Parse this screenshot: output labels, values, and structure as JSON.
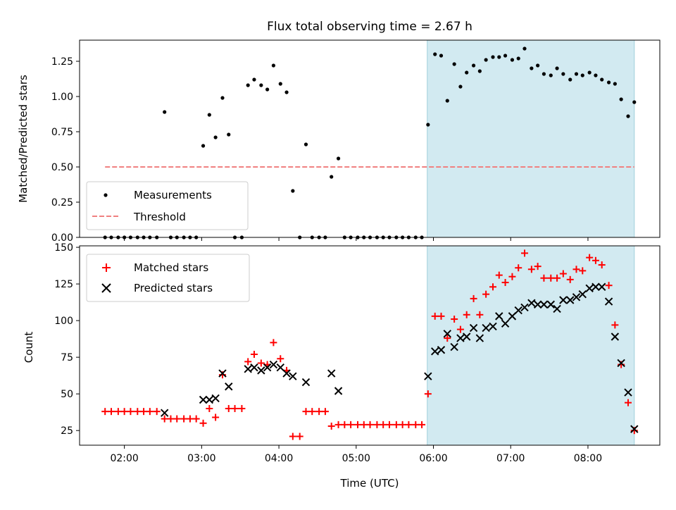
{
  "title": "Flux total observing time = 2.67 h",
  "colors": {
    "highlight": "#add8e6",
    "measurement": "#000000",
    "threshold": "#f08080",
    "matched": "#ff0000",
    "predicted": "#000000"
  },
  "chart_data": [
    {
      "type": "scatter",
      "title": "Flux total observing time = 2.67 h",
      "xlabel": "",
      "ylabel": "Matched/Predicted stars",
      "x_unit": "hours (UTC)",
      "xlim": [
        1.42,
        8.93
      ],
      "ylim": [
        0,
        1.4
      ],
      "yticks": [
        "0.00",
        "0.25",
        "0.50",
        "0.75",
        "1.00",
        "1.25"
      ],
      "ytick_values": [
        0,
        0.25,
        0.5,
        0.75,
        1.0,
        1.25
      ],
      "highlight_span": [
        5.92,
        8.6
      ],
      "legend": [
        "Measurements",
        "Threshold"
      ],
      "legend_position": "lower-left",
      "threshold": {
        "y": 0.5,
        "x": [
          1.75,
          8.6
        ]
      },
      "series": [
        {
          "name": "Measurements",
          "marker": "dot",
          "points": [
            [
              1.75,
              0
            ],
            [
              1.83,
              0
            ],
            [
              1.92,
              0
            ],
            [
              2.0,
              0
            ],
            [
              2.08,
              0
            ],
            [
              2.17,
              0
            ],
            [
              2.25,
              0
            ],
            [
              2.33,
              0
            ],
            [
              2.42,
              0
            ],
            [
              2.52,
              0.89
            ],
            [
              2.6,
              0
            ],
            [
              2.68,
              0
            ],
            [
              2.77,
              0
            ],
            [
              2.85,
              0
            ],
            [
              2.93,
              0
            ],
            [
              3.02,
              0.65
            ],
            [
              3.1,
              0.87
            ],
            [
              3.18,
              0.71
            ],
            [
              3.27,
              0.99
            ],
            [
              3.35,
              0.73
            ],
            [
              3.43,
              0
            ],
            [
              3.52,
              0
            ],
            [
              3.6,
              1.08
            ],
            [
              3.68,
              1.12
            ],
            [
              3.77,
              1.08
            ],
            [
              3.85,
              1.05
            ],
            [
              3.93,
              1.22
            ],
            [
              4.02,
              1.09
            ],
            [
              4.1,
              1.03
            ],
            [
              4.18,
              0.33
            ],
            [
              4.27,
              0
            ],
            [
              4.35,
              0.66
            ],
            [
              4.43,
              0
            ],
            [
              4.52,
              0
            ],
            [
              4.6,
              0
            ],
            [
              4.68,
              0.43
            ],
            [
              4.77,
              0.56
            ],
            [
              4.85,
              0
            ],
            [
              4.93,
              0
            ],
            [
              5.02,
              0
            ],
            [
              5.1,
              0
            ],
            [
              5.18,
              0
            ],
            [
              5.27,
              0
            ],
            [
              5.35,
              0
            ],
            [
              5.43,
              0
            ],
            [
              5.52,
              0
            ],
            [
              5.6,
              0
            ],
            [
              5.68,
              0
            ],
            [
              5.77,
              0
            ],
            [
              5.85,
              0
            ],
            [
              5.93,
              0.8
            ],
            [
              6.02,
              1.3
            ],
            [
              6.1,
              1.29
            ],
            [
              6.18,
              0.97
            ],
            [
              6.27,
              1.23
            ],
            [
              6.35,
              1.07
            ],
            [
              6.43,
              1.17
            ],
            [
              6.52,
              1.22
            ],
            [
              6.6,
              1.18
            ],
            [
              6.68,
              1.26
            ],
            [
              6.77,
              1.28
            ],
            [
              6.85,
              1.28
            ],
            [
              6.93,
              1.29
            ],
            [
              7.02,
              1.26
            ],
            [
              7.1,
              1.27
            ],
            [
              7.18,
              1.34
            ],
            [
              7.27,
              1.2
            ],
            [
              7.35,
              1.22
            ],
            [
              7.43,
              1.16
            ],
            [
              7.52,
              1.15
            ],
            [
              7.6,
              1.2
            ],
            [
              7.68,
              1.16
            ],
            [
              7.77,
              1.12
            ],
            [
              7.85,
              1.16
            ],
            [
              7.93,
              1.15
            ],
            [
              8.02,
              1.17
            ],
            [
              8.1,
              1.15
            ],
            [
              8.18,
              1.12
            ],
            [
              8.27,
              1.1
            ],
            [
              8.35,
              1.09
            ],
            [
              8.43,
              0.98
            ],
            [
              8.52,
              0.86
            ],
            [
              8.6,
              0.96
            ]
          ]
        }
      ]
    },
    {
      "type": "scatter",
      "title": "",
      "xlabel": "Time (UTC)",
      "ylabel": "Count",
      "x_unit": "hours (UTC)",
      "xlim": [
        1.42,
        8.93
      ],
      "ylim": [
        15,
        151
      ],
      "xticks": [
        "02:00",
        "03:00",
        "04:00",
        "05:00",
        "06:00",
        "07:00",
        "08:00"
      ],
      "xtick_values": [
        2,
        3,
        4,
        5,
        6,
        7,
        8
      ],
      "yticks": [
        "25",
        "50",
        "75",
        "100",
        "125",
        "150"
      ],
      "ytick_values": [
        25,
        50,
        75,
        100,
        125,
        150
      ],
      "highlight_span": [
        5.92,
        8.6
      ],
      "legend": [
        "Matched stars",
        "Predicted stars"
      ],
      "legend_position": "upper-left",
      "series": [
        {
          "name": "Matched stars",
          "marker": "plus",
          "points": [
            [
              1.75,
              38
            ],
            [
              1.83,
              38
            ],
            [
              1.92,
              38
            ],
            [
              2.0,
              38
            ],
            [
              2.08,
              38
            ],
            [
              2.17,
              38
            ],
            [
              2.25,
              38
            ],
            [
              2.33,
              38
            ],
            [
              2.42,
              38
            ],
            [
              2.52,
              33
            ],
            [
              2.6,
              33
            ],
            [
              2.68,
              33
            ],
            [
              2.77,
              33
            ],
            [
              2.85,
              33
            ],
            [
              2.93,
              33
            ],
            [
              3.02,
              30
            ],
            [
              3.1,
              40
            ],
            [
              3.18,
              34
            ],
            [
              3.27,
              63
            ],
            [
              3.35,
              40
            ],
            [
              3.43,
              40
            ],
            [
              3.52,
              40
            ],
            [
              3.6,
              72
            ],
            [
              3.68,
              77
            ],
            [
              3.77,
              71
            ],
            [
              3.85,
              70
            ],
            [
              3.93,
              85
            ],
            [
              4.02,
              74
            ],
            [
              4.1,
              66
            ],
            [
              4.18,
              21
            ],
            [
              4.27,
              21
            ],
            [
              4.35,
              38
            ],
            [
              4.43,
              38
            ],
            [
              4.52,
              38
            ],
            [
              4.6,
              38
            ],
            [
              4.68,
              28
            ],
            [
              4.77,
              29
            ],
            [
              4.85,
              29
            ],
            [
              4.93,
              29
            ],
            [
              5.02,
              29
            ],
            [
              5.1,
              29
            ],
            [
              5.18,
              29
            ],
            [
              5.27,
              29
            ],
            [
              5.35,
              29
            ],
            [
              5.43,
              29
            ],
            [
              5.52,
              29
            ],
            [
              5.6,
              29
            ],
            [
              5.68,
              29
            ],
            [
              5.77,
              29
            ],
            [
              5.85,
              29
            ],
            [
              5.93,
              50
            ],
            [
              6.02,
              103
            ],
            [
              6.1,
              103
            ],
            [
              6.18,
              88
            ],
            [
              6.27,
              101
            ],
            [
              6.35,
              94
            ],
            [
              6.43,
              104
            ],
            [
              6.52,
              115
            ],
            [
              6.6,
              104
            ],
            [
              6.68,
              118
            ],
            [
              6.77,
              123
            ],
            [
              6.85,
              131
            ],
            [
              6.93,
              126
            ],
            [
              7.02,
              130
            ],
            [
              7.1,
              136
            ],
            [
              7.18,
              146
            ],
            [
              7.27,
              135
            ],
            [
              7.35,
              137
            ],
            [
              7.43,
              129
            ],
            [
              7.52,
              129
            ],
            [
              7.6,
              129
            ],
            [
              7.68,
              132
            ],
            [
              7.77,
              128
            ],
            [
              7.85,
              135
            ],
            [
              7.93,
              134
            ],
            [
              8.02,
              143
            ],
            [
              8.1,
              141
            ],
            [
              8.18,
              138
            ],
            [
              8.27,
              124
            ],
            [
              8.35,
              97
            ],
            [
              8.43,
              70
            ],
            [
              8.52,
              44
            ],
            [
              8.6,
              25
            ]
          ]
        },
        {
          "name": "Predicted stars",
          "marker": "x",
          "points": [
            [
              2.52,
              37
            ],
            [
              3.02,
              46
            ],
            [
              3.1,
              46
            ],
            [
              3.18,
              47
            ],
            [
              3.27,
              64
            ],
            [
              3.35,
              55
            ],
            [
              3.6,
              67
            ],
            [
              3.68,
              68
            ],
            [
              3.77,
              66
            ],
            [
              3.85,
              68
            ],
            [
              3.93,
              70
            ],
            [
              4.02,
              68
            ],
            [
              4.1,
              64
            ],
            [
              4.18,
              62
            ],
            [
              4.35,
              58
            ],
            [
              4.68,
              64
            ],
            [
              4.77,
              52
            ],
            [
              5.93,
              62
            ],
            [
              6.02,
              79
            ],
            [
              6.1,
              80
            ],
            [
              6.18,
              91
            ],
            [
              6.27,
              82
            ],
            [
              6.35,
              88
            ],
            [
              6.43,
              89
            ],
            [
              6.52,
              95
            ],
            [
              6.6,
              88
            ],
            [
              6.68,
              95
            ],
            [
              6.77,
              96
            ],
            [
              6.85,
              103
            ],
            [
              6.93,
              98
            ],
            [
              7.02,
              103
            ],
            [
              7.1,
              107
            ],
            [
              7.18,
              109
            ],
            [
              7.27,
              112
            ],
            [
              7.35,
              111
            ],
            [
              7.43,
              111
            ],
            [
              7.52,
              111
            ],
            [
              7.6,
              108
            ],
            [
              7.68,
              114
            ],
            [
              7.77,
              114
            ],
            [
              7.85,
              116
            ],
            [
              7.93,
              118
            ],
            [
              8.02,
              122
            ],
            [
              8.1,
              123
            ],
            [
              8.18,
              123
            ],
            [
              8.27,
              113
            ],
            [
              8.35,
              89
            ],
            [
              8.43,
              71
            ],
            [
              8.52,
              51
            ],
            [
              8.6,
              26
            ]
          ]
        }
      ]
    }
  ]
}
